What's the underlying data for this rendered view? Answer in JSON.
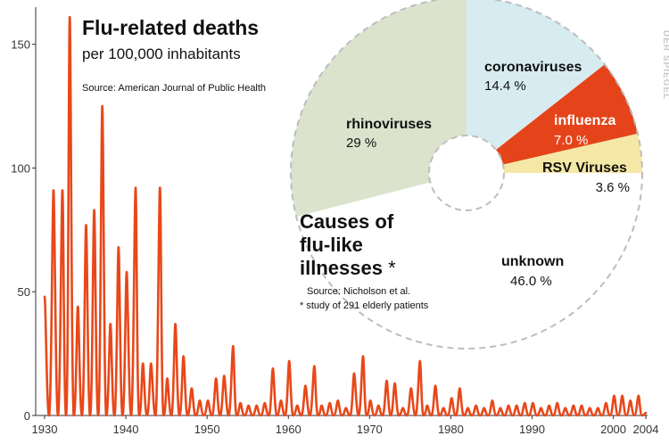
{
  "chart_data": [
    {
      "type": "line",
      "title": "Flu-related deaths",
      "subtitle": "per 100,000 inhabitants",
      "source": "Source: American Journal of Public Health",
      "xlabel": "",
      "ylabel": "",
      "xlim": [
        1930,
        2004
      ],
      "ylim": [
        0,
        165
      ],
      "x_ticks": [
        1930,
        1940,
        1950,
        1960,
        1970,
        1980,
        1990,
        2000,
        2004
      ],
      "y_ticks": [
        0,
        50,
        100,
        150
      ],
      "color": "#e8481a",
      "grid": false,
      "series": [
        {
          "peaks": [
            [
              1930.0,
              48
            ],
            [
              1931.1,
              91
            ],
            [
              1932.2,
              91
            ],
            [
              1933.1,
              161
            ],
            [
              1934.1,
              44
            ],
            [
              1935.1,
              77
            ],
            [
              1936.1,
              83
            ],
            [
              1937.1,
              125
            ],
            [
              1938.1,
              37
            ],
            [
              1939.1,
              68
            ],
            [
              1940.1,
              58
            ],
            [
              1941.2,
              92
            ],
            [
              1942.1,
              21
            ],
            [
              1943.1,
              21
            ],
            [
              1944.2,
              92
            ],
            [
              1945.1,
              15
            ],
            [
              1946.1,
              37
            ],
            [
              1947.1,
              24
            ],
            [
              1948.1,
              11
            ],
            [
              1949.1,
              6
            ],
            [
              1950.1,
              6
            ],
            [
              1951.1,
              15
            ],
            [
              1952.1,
              16
            ],
            [
              1953.2,
              28
            ],
            [
              1954.1,
              5
            ],
            [
              1955.1,
              4
            ],
            [
              1956.1,
              4
            ],
            [
              1957.1,
              5
            ],
            [
              1958.1,
              19
            ],
            [
              1959.1,
              6
            ],
            [
              1960.1,
              22
            ],
            [
              1961.1,
              4
            ],
            [
              1962.1,
              12
            ],
            [
              1963.2,
              20
            ],
            [
              1964.1,
              4
            ],
            [
              1965.1,
              5
            ],
            [
              1966.1,
              6
            ],
            [
              1967.1,
              3
            ],
            [
              1968.1,
              17
            ],
            [
              1969.2,
              24
            ],
            [
              1970.1,
              6
            ],
            [
              1971.1,
              4
            ],
            [
              1972.1,
              14
            ],
            [
              1973.1,
              13
            ],
            [
              1974.1,
              3
            ],
            [
              1975.1,
              11
            ],
            [
              1976.2,
              22
            ],
            [
              1977.1,
              4
            ],
            [
              1978.1,
              12
            ],
            [
              1979.1,
              3
            ],
            [
              1980.1,
              7
            ],
            [
              1981.1,
              11
            ],
            [
              1982.1,
              3
            ],
            [
              1983.1,
              4
            ],
            [
              1984.1,
              3
            ],
            [
              1985.1,
              6
            ],
            [
              1986.1,
              3
            ],
            [
              1987.1,
              4
            ],
            [
              1988.1,
              4
            ],
            [
              1989.1,
              5
            ],
            [
              1990.1,
              5
            ],
            [
              1991.1,
              3
            ],
            [
              1992.1,
              4
            ],
            [
              1993.1,
              5
            ],
            [
              1994.1,
              3
            ],
            [
              1995.1,
              4
            ],
            [
              1996.1,
              4
            ],
            [
              1997.1,
              3
            ],
            [
              1998.1,
              3
            ],
            [
              1999.1,
              5
            ],
            [
              2000.1,
              8
            ],
            [
              2001.1,
              8
            ],
            [
              2002.1,
              6
            ],
            [
              2003.1,
              8
            ],
            [
              2004.0,
              1
            ]
          ],
          "trough": 0
        }
      ]
    },
    {
      "type": "pie",
      "title": "Causes of flu-like illnesses*",
      "title_lines": [
        "Causes of",
        "flu-like",
        "illnesses"
      ],
      "asterisk": "*",
      "source": "Source: Nicholson et al.",
      "footnote": "* study of 291 elderly patients",
      "slices": [
        {
          "label": "coronaviruses",
          "value": 14.4,
          "value_text": "14.4 %",
          "color": "#d7ecf1"
        },
        {
          "label": "influenza",
          "value": 7.0,
          "value_text": "7.0 %",
          "color": "#e5441a"
        },
        {
          "label": "RSV Viruses",
          "value": 3.6,
          "value_text": "3.6 %",
          "color": "#f5e8a6"
        },
        {
          "label": "unknown",
          "value": 46.0,
          "value_text": "46.0 %",
          "color": "#ffffff"
        },
        {
          "label": "rhinoviruses",
          "value": 29.0,
          "value_text": "29 %",
          "color": "#dce3cd"
        }
      ]
    }
  ],
  "watermark": "DER SPIEGEL"
}
